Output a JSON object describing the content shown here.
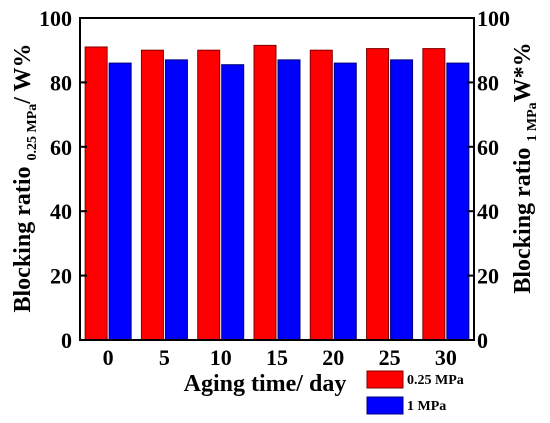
{
  "chart_data": {
    "type": "bar",
    "xlabel": "Aging time/ day",
    "ylabel_left": {
      "main": "Blocking ratio",
      "sub": "0.25 MPa",
      "tail": "/ W%"
    },
    "ylabel_right": {
      "main": "Blocking ratio",
      "sub": "1 MPa",
      "tail": "W*%"
    },
    "categories": [
      "0",
      "5",
      "10",
      "15",
      "20",
      "25",
      "30"
    ],
    "yticks": [
      "0",
      "20",
      "40",
      "60",
      "80",
      "100"
    ],
    "ylim": [
      0,
      100
    ],
    "series": [
      {
        "name": "0.25 MPa",
        "color": "#ff0000",
        "values": [
          91,
          90,
          90,
          91.5,
          90,
          90.5,
          90.5
        ]
      },
      {
        "name": "1 MPa",
        "color": "#0000ff",
        "values": [
          86,
          87,
          85.5,
          87,
          86,
          87,
          86
        ]
      }
    ],
    "legend_position": "bottom-right",
    "grid": false
  }
}
